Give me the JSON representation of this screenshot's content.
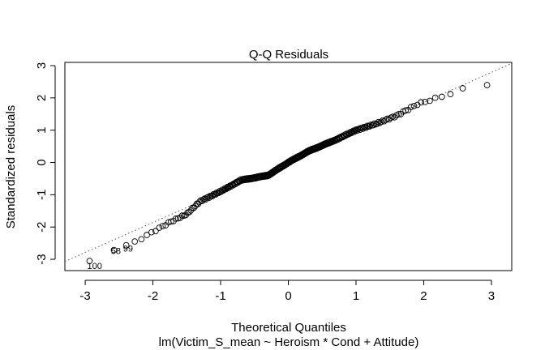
{
  "chart_data": {
    "type": "scatter",
    "title": "Q-Q Residuals",
    "xlabel": "Theoretical Quantiles",
    "ylabel": "Standardized residuals",
    "subtitle": "lm(Victim_S_mean ~ Heroism * Cond + Attitude)",
    "xlim": [
      -3.3,
      3.3
    ],
    "ylim": [
      -3.35,
      3.1
    ],
    "x_ticks": [
      -3,
      -2,
      -1,
      0,
      1,
      2,
      3
    ],
    "y_ticks": [
      -3,
      -2,
      -1,
      0,
      1,
      2,
      3
    ],
    "reference_line": {
      "slope": 0.93,
      "intercept": 0.0,
      "style": "dotted",
      "color": "#555555"
    },
    "marker": "open-circle",
    "labeled_points": [
      {
        "label": "100",
        "x": -3.03,
        "y": -3.2
      },
      {
        "label": "58",
        "x": -2.68,
        "y": -2.73
      },
      {
        "label": "99",
        "x": -2.5,
        "y": -2.66
      }
    ],
    "series": [
      {
        "quantile_knots": [
          [
            -3.03,
            -3.2
          ],
          [
            -2.68,
            -2.73
          ],
          [
            -2.5,
            -2.66
          ],
          [
            -2.25,
            -2.45
          ],
          [
            -2.0,
            -2.15
          ],
          [
            -1.75,
            -1.85
          ],
          [
            -1.5,
            -1.6
          ],
          [
            -1.3,
            -1.2
          ],
          [
            -1.0,
            -0.9
          ],
          [
            -0.7,
            -0.55
          ],
          [
            -0.3,
            -0.4
          ],
          [
            0.0,
            0.0
          ],
          [
            0.3,
            0.35
          ],
          [
            0.7,
            0.7
          ],
          [
            1.0,
            1.0
          ],
          [
            1.3,
            1.2
          ],
          [
            1.6,
            1.45
          ],
          [
            1.9,
            1.8
          ],
          [
            2.2,
            2.0
          ],
          [
            2.5,
            2.2
          ],
          [
            2.68,
            2.37
          ],
          [
            3.03,
            2.43
          ]
        ],
        "n_points": 300
      }
    ]
  }
}
